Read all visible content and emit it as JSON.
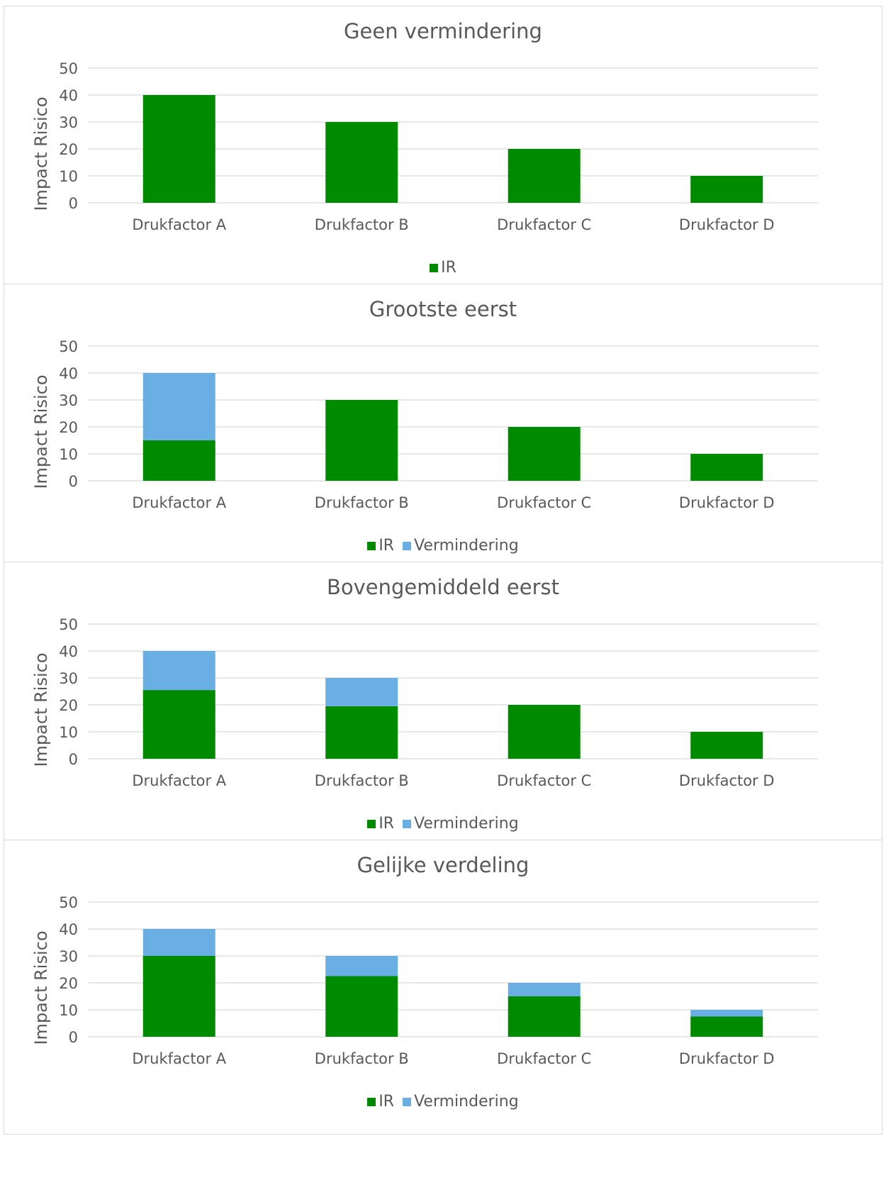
{
  "colors": {
    "IR": "#008a00",
    "Vermindering": "#6aafe3",
    "grid": "#d9d9d9",
    "text": "#595959"
  },
  "chart_data": [
    {
      "type": "bar",
      "stacked": true,
      "title": "Geen vermindering",
      "ylabel": "Impact Risico",
      "xlabel": "",
      "ylim": [
        0,
        50
      ],
      "yticks": [
        "0",
        "10",
        "20",
        "30",
        "40",
        "50"
      ],
      "categories": [
        "Drukfactor A",
        "Drukfactor B",
        "Drukfactor C",
        "Drukfactor D"
      ],
      "series": [
        {
          "name": "IR",
          "values": [
            40,
            30,
            20,
            10
          ]
        }
      ],
      "legend": "bottom",
      "grid": true
    },
    {
      "type": "bar",
      "stacked": true,
      "title": "Grootste eerst",
      "ylabel": "Impact Risico",
      "xlabel": "",
      "ylim": [
        0,
        50
      ],
      "yticks": [
        "0",
        "10",
        "20",
        "30",
        "40",
        "50"
      ],
      "categories": [
        "Drukfactor A",
        "Drukfactor B",
        "Drukfactor C",
        "Drukfactor D"
      ],
      "series": [
        {
          "name": "IR",
          "values": [
            15,
            30,
            20,
            10
          ]
        },
        {
          "name": "Vermindering",
          "values": [
            25,
            0,
            0,
            0
          ]
        }
      ],
      "legend": "bottom",
      "grid": true
    },
    {
      "type": "bar",
      "stacked": true,
      "title": "Bovengemiddeld eerst",
      "ylabel": "Impact Risico",
      "xlabel": "",
      "ylim": [
        0,
        50
      ],
      "yticks": [
        "0",
        "10",
        "20",
        "30",
        "40",
        "50"
      ],
      "categories": [
        "Drukfactor A",
        "Drukfactor B",
        "Drukfactor C",
        "Drukfactor D"
      ],
      "series": [
        {
          "name": "IR",
          "values": [
            25.5,
            19.5,
            20,
            10
          ]
        },
        {
          "name": "Vermindering",
          "values": [
            14.5,
            10.5,
            0,
            0
          ]
        }
      ],
      "legend": "bottom",
      "grid": true
    },
    {
      "type": "bar",
      "stacked": true,
      "title": "Gelijke verdeling",
      "ylabel": "Impact Risico",
      "xlabel": "",
      "ylim": [
        0,
        50
      ],
      "yticks": [
        "0",
        "10",
        "20",
        "30",
        "40",
        "50"
      ],
      "categories": [
        "Drukfactor A",
        "Drukfactor B",
        "Drukfactor C",
        "Drukfactor D"
      ],
      "series": [
        {
          "name": "IR",
          "values": [
            30,
            22.5,
            15,
            7.5
          ]
        },
        {
          "name": "Vermindering",
          "values": [
            10,
            7.5,
            5,
            2.5
          ]
        }
      ],
      "legend": "bottom",
      "grid": true
    }
  ]
}
